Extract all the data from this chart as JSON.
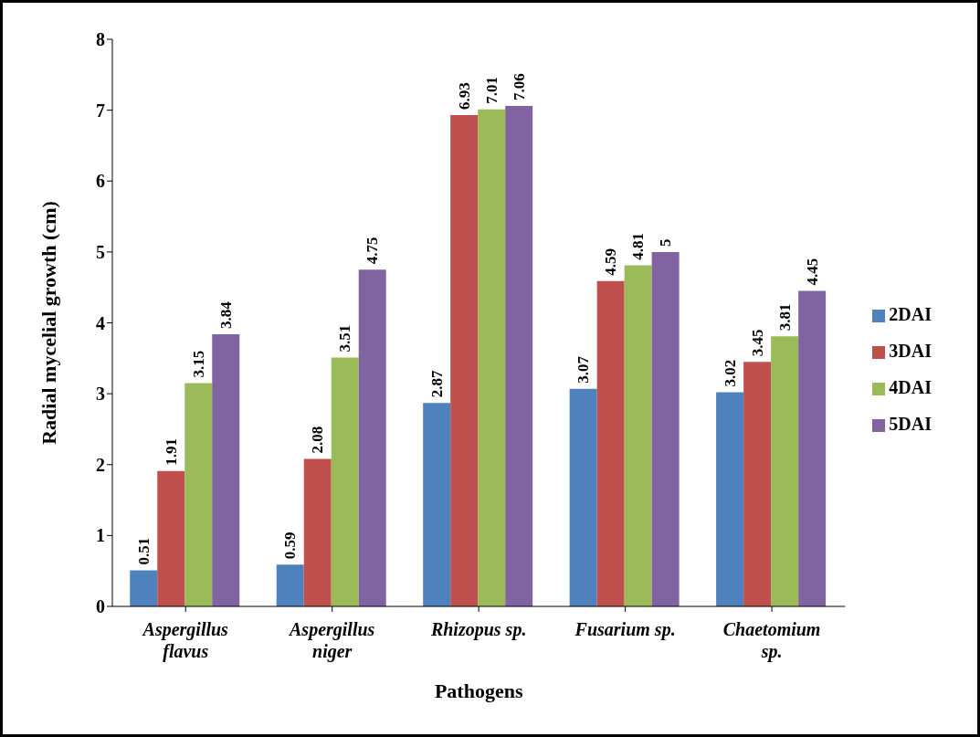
{
  "chart_data": {
    "type": "bar",
    "xlabel": "Pathogens",
    "ylabel": "Radial mycelial growth (cm)",
    "categories": [
      "Aspergillus flavus",
      "Aspergillus niger",
      "Rhizopus sp.",
      "Fusarium sp.",
      "Chaetomium sp."
    ],
    "series": [
      {
        "name": "2DAI",
        "color": "#4f81bd",
        "values": [
          0.51,
          0.59,
          2.87,
          3.07,
          3.02
        ]
      },
      {
        "name": "3DAI",
        "color": "#c0504d",
        "values": [
          1.91,
          2.08,
          6.93,
          4.59,
          3.45
        ]
      },
      {
        "name": "4DAI",
        "color": "#9bbb59",
        "values": [
          3.15,
          3.51,
          7.01,
          4.81,
          3.81
        ]
      },
      {
        "name": "5DAI",
        "color": "#8064a2",
        "values": [
          3.84,
          4.75,
          7.06,
          5,
          4.45
        ]
      }
    ],
    "ylim": [
      0,
      8
    ],
    "yticks": [
      0,
      1,
      2,
      3,
      4,
      5,
      6,
      7,
      8
    ],
    "grid": false,
    "legend": "right",
    "data_labels": true
  }
}
